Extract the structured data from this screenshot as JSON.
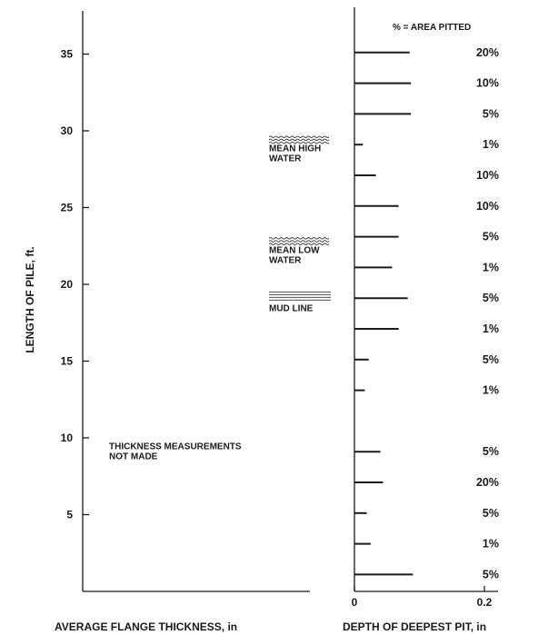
{
  "chart_data": [
    {
      "type": "line",
      "title": "",
      "xlabel": "AVERAGE FLANGE THICKNESS, in",
      "ylabel": "LENGTH OF PILE, ft.",
      "ylim": [
        0,
        38
      ],
      "yticks": [
        5,
        10,
        15,
        20,
        25,
        30,
        35
      ],
      "series": [],
      "annotations": [
        {
          "text": [
            "THICKNESS MEASUREMENTS",
            "NOT MADE"
          ],
          "y": 9.5
        },
        {
          "text": [
            "MEAN HIGH",
            "WATER"
          ],
          "y": 28.3
        },
        {
          "text": [
            "MEAN LOW",
            "WATER"
          ],
          "y": 21.7
        },
        {
          "text": [
            "MUD LINE"
          ],
          "y": 18.5
        }
      ]
    },
    {
      "type": "bar",
      "orientation": "horizontal",
      "title": "",
      "xlabel": "DEPTH OF DEEPEST PIT, in",
      "xlim": [
        0,
        0.25
      ],
      "xticks": [
        0,
        0.2
      ],
      "xtick_labels": [
        "0",
        "0.2"
      ],
      "ylim": [
        0,
        38
      ],
      "legend_note": "% = AREA PITTED",
      "bars": [
        {
          "y": 35.1,
          "depth": 0.085,
          "area_pitted": "20%"
        },
        {
          "y": 33.1,
          "depth": 0.087,
          "area_pitted": "10%"
        },
        {
          "y": 31.1,
          "depth": 0.087,
          "area_pitted": "5%"
        },
        {
          "y": 29.1,
          "depth": 0.013,
          "area_pitted": "1%"
        },
        {
          "y": 27.1,
          "depth": 0.033,
          "area_pitted": "10%"
        },
        {
          "y": 25.1,
          "depth": 0.068,
          "area_pitted": "10%"
        },
        {
          "y": 23.1,
          "depth": 0.068,
          "area_pitted": "5%"
        },
        {
          "y": 21.1,
          "depth": 0.058,
          "area_pitted": "1%"
        },
        {
          "y": 19.1,
          "depth": 0.082,
          "area_pitted": "5%"
        },
        {
          "y": 17.1,
          "depth": 0.068,
          "area_pitted": "1%"
        },
        {
          "y": 15.1,
          "depth": 0.022,
          "area_pitted": "5%"
        },
        {
          "y": 13.1,
          "depth": 0.016,
          "area_pitted": "1%"
        },
        {
          "y": 9.1,
          "depth": 0.04,
          "area_pitted": "5%"
        },
        {
          "y": 7.1,
          "depth": 0.044,
          "area_pitted": "20%"
        },
        {
          "y": 5.1,
          "depth": 0.019,
          "area_pitted": "5%"
        },
        {
          "y": 3.1,
          "depth": 0.025,
          "area_pitted": "1%"
        },
        {
          "y": 1.1,
          "depth": 0.09,
          "area_pitted": "5%"
        }
      ]
    }
  ]
}
